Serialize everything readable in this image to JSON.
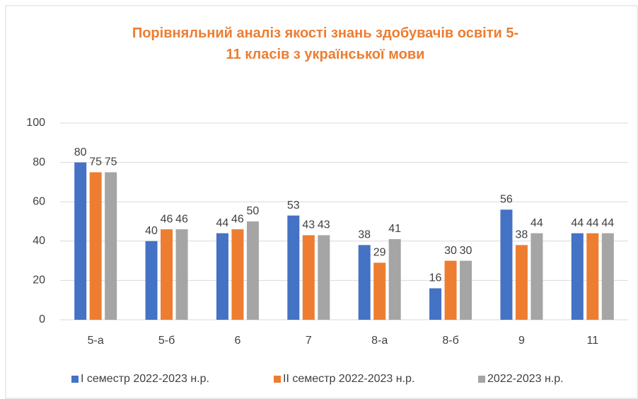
{
  "chart_data": {
    "type": "bar",
    "title": "Порівняльний аналіз якості знань здобувачів освіти 5-11 класів з української мови",
    "categories": [
      "5-а",
      "5-б",
      "6",
      "7",
      "8-а",
      "8-б",
      "9",
      "11"
    ],
    "series": [
      {
        "name": "I семестр 2022-2023 н.р.",
        "color": "#4472c4",
        "values": [
          80,
          40,
          44,
          53,
          38,
          16,
          56,
          44
        ]
      },
      {
        "name": "II семестр 2022-2023  н.р.",
        "color": "#ed7d31",
        "values": [
          75,
          46,
          46,
          43,
          29,
          30,
          38,
          44
        ]
      },
      {
        "name": "2022-2023  н.р.",
        "color": "#a5a5a5",
        "values": [
          75,
          46,
          50,
          43,
          41,
          30,
          44,
          44
        ]
      }
    ],
    "ylim": [
      0,
      100
    ],
    "yticks": [
      0,
      20,
      40,
      60,
      80,
      100
    ],
    "grid": true,
    "legend": "bottom"
  }
}
